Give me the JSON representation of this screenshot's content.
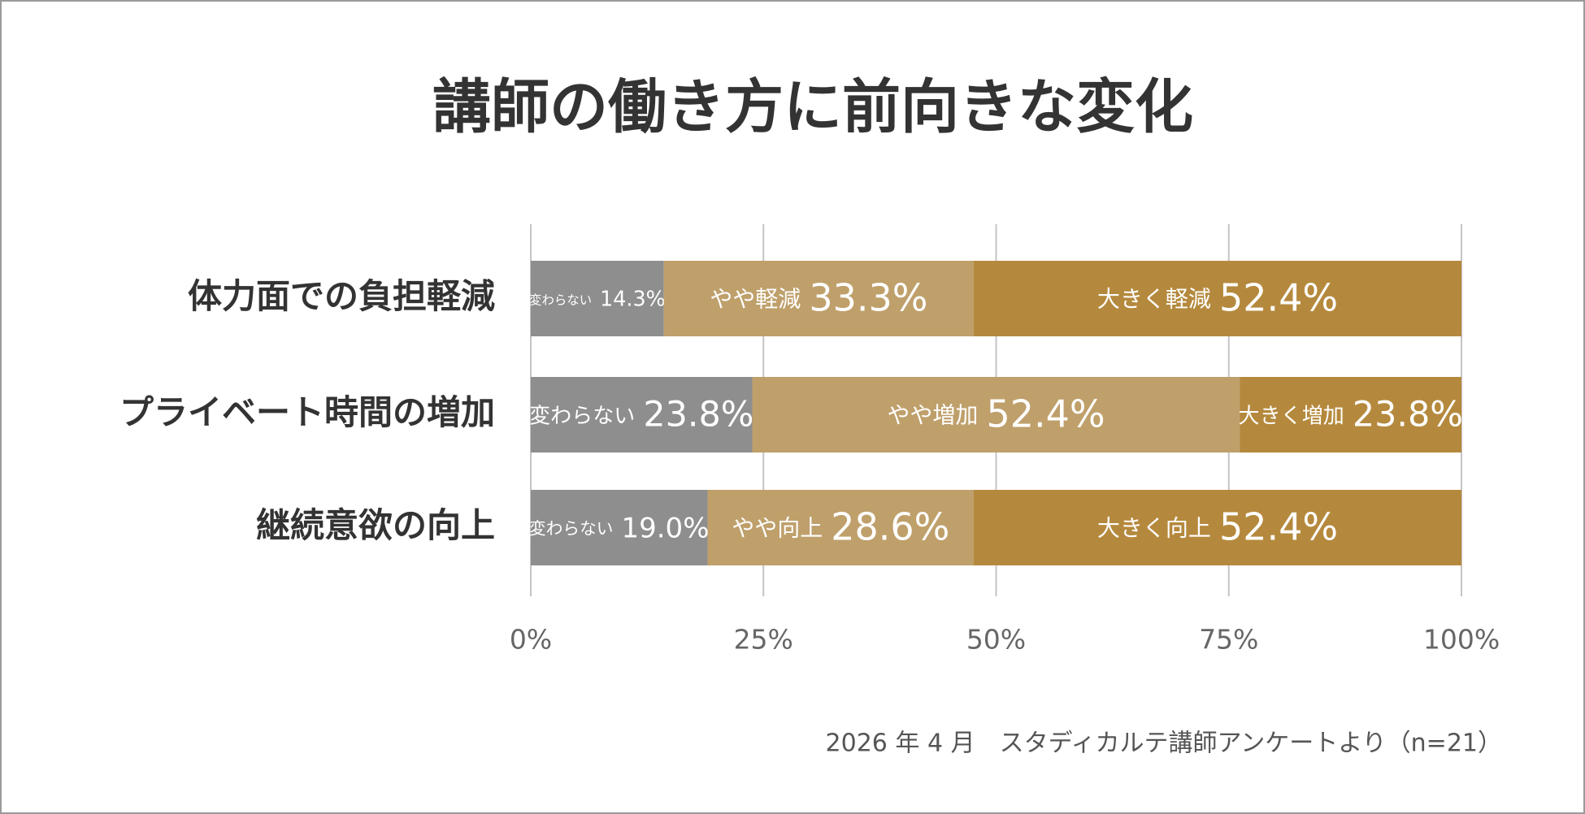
{
  "chart_data": {
    "type": "stacked-bar-horizontal",
    "title": "講師の働き方に前向きな変化",
    "categories": [
      "体力面での負担軽減",
      "プライベート時間の増加",
      "継続意欲の向上"
    ],
    "series": [
      {
        "labels": [
          "変わらない",
          "変わらない",
          "変わらない"
        ],
        "color": "#8e8e8e",
        "values": [
          14.3,
          23.8,
          19.0
        ],
        "value_labels": [
          "14.3%",
          "23.8%",
          "19.0%"
        ]
      },
      {
        "labels": [
          "やや軽減",
          "やや増加",
          "やや向上"
        ],
        "color": "#bfa06b",
        "values": [
          33.3,
          52.4,
          28.6
        ],
        "value_labels": [
          "33.3%",
          "52.4%",
          "28.6%"
        ]
      },
      {
        "labels": [
          "大きく軽減",
          "大きく増加",
          "大きく向上"
        ],
        "color": "#b5893d",
        "values": [
          52.4,
          23.8,
          52.4
        ],
        "value_labels": [
          "52.4%",
          "23.8%",
          "52.4%"
        ]
      }
    ],
    "xlim": [
      0,
      100
    ],
    "xticks": [
      {
        "value": 0,
        "label": "0%"
      },
      {
        "value": 25,
        "label": "25%"
      },
      {
        "value": 50,
        "label": "50%"
      },
      {
        "value": 75,
        "label": "75%"
      },
      {
        "value": 100,
        "label": "100%"
      }
    ],
    "grid": true,
    "note": "2026 年 4 月　スタディカルテ講師アンケートより（n=21）"
  }
}
